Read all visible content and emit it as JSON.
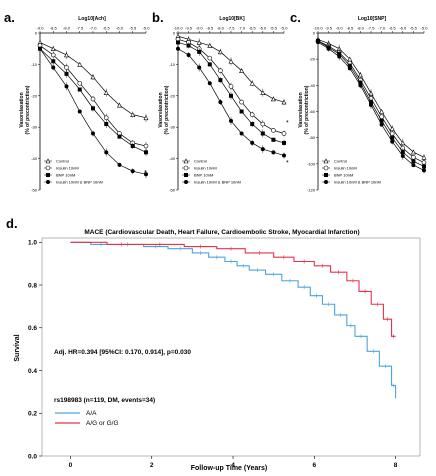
{
  "panels": [
    {
      "letter": "a.",
      "top_axis_label": "Log10[Ach]",
      "top_ticks": [
        "-9.0",
        "-8.5",
        "-8.0",
        "-7.5",
        "-7.0",
        "-6.5",
        "-6.0",
        "-5.5",
        "-5.0"
      ],
      "y_ticks": [
        "0",
        "-10",
        "-20",
        "-30",
        "-40",
        "-50"
      ],
      "ylabel": "Vasorelaxation",
      "ylabel_sub": "(% of precontriction)",
      "legend": [
        "Control",
        "Insulin 10nM",
        "BNP 10nM",
        "Insulin 10nM & BNP 10nM"
      ],
      "star": "*"
    },
    {
      "letter": "b.",
      "top_axis_label": "Log10[BK]",
      "top_ticks": [
        "-10.0",
        "-9.5",
        "-9.0",
        "-8.5",
        "-8.0",
        "-7.5",
        "-7.0",
        "-6.5",
        "-6.0",
        "-5.5",
        "-5.0"
      ],
      "y_ticks": [
        "0",
        "-10",
        "-20",
        "-30",
        "-40",
        "-50"
      ],
      "ylabel": "Vasorelaxation",
      "ylabel_sub": "(% of precontriction)",
      "legend": [
        "Control",
        "Insulin 10nM",
        "BNP 10nM",
        "Insulin 10nM & BNP 10nM"
      ],
      "star": "*"
    },
    {
      "letter": "c.",
      "top_axis_label": "Log10[SNP]",
      "top_ticks": [
        "-10.0",
        "-9.5",
        "-9.0",
        "-8.5",
        "-8.0",
        "-7.5",
        "-7.0",
        "-6.5",
        "-6.0",
        "-5.5",
        "-5.0"
      ],
      "y_ticks": [
        "0",
        "-20",
        "-40",
        "-60",
        "-80",
        "-100",
        "-120"
      ],
      "ylabel": "Vasorelaxation",
      "ylabel_sub": "(% of precontriction)",
      "legend": [
        "Control",
        "Insulin 10nM",
        "BNP 10nM",
        "Insulin 10nM & BNP 10nM"
      ],
      "star": ""
    }
  ],
  "km": {
    "letter": "d.",
    "title": "MACE (Cardiovascular Death, Heart Failure, Cardioembolic Stroke, Myocardial Infarction)",
    "ylabel": "Survival",
    "xlabel": "Follow-up Time (Years)",
    "y_ticks": [
      "0.0",
      "0.2",
      "0.4",
      "0.6",
      "0.8",
      "1.0"
    ],
    "x_ticks": [
      "0",
      "2",
      "4",
      "6",
      "8"
    ],
    "hr_text": "Adj. HR=0.394 [95%CI: 0.170, 0.914], p=0.030",
    "group_text": "rs198983 (n=119, DM, events=34)",
    "legend": [
      "A/A",
      "A/G or G/G"
    ],
    "colors": [
      "#4da3e0",
      "#e8334a"
    ]
  },
  "chart_data": [
    {
      "type": "line",
      "panel": "a",
      "xlabel": "Log10[Ach]",
      "ylabel": "Vasorelaxation (% of precontriction)",
      "xlim": [
        -9.0,
        -5.0
      ],
      "ylim": [
        -50,
        0
      ],
      "x": [
        -9.0,
        -8.5,
        -8.0,
        -7.5,
        -7.0,
        -6.5,
        -6.0,
        -5.5,
        -5.0
      ],
      "series": [
        {
          "name": "Control",
          "marker": "triangle-open",
          "values": [
            -3,
            -5,
            -7,
            -10,
            -14,
            -19,
            -23,
            -26,
            -27
          ]
        },
        {
          "name": "Insulin 10nM",
          "marker": "circle-open",
          "values": [
            -4,
            -7,
            -11,
            -16,
            -21,
            -27,
            -32,
            -35,
            -36
          ]
        },
        {
          "name": "BNP 10nM",
          "marker": "square-filled",
          "values": [
            -5,
            -9,
            -13,
            -18,
            -24,
            -29,
            -33,
            -36,
            -38
          ]
        },
        {
          "name": "Insulin 10nM & BNP 10nM",
          "marker": "circle-filled",
          "values": [
            -5,
            -11,
            -17,
            -25,
            -32,
            -38,
            -42,
            -44,
            -45
          ]
        }
      ]
    },
    {
      "type": "line",
      "panel": "b",
      "xlabel": "Log10[BK]",
      "ylabel": "Vasorelaxation (% of precontriction)",
      "xlim": [
        -10.0,
        -5.0
      ],
      "ylim": [
        -50,
        0
      ],
      "x": [
        -10.0,
        -9.5,
        -9.0,
        -8.5,
        -8.0,
        -7.5,
        -7.0,
        -6.5,
        -6.0,
        -5.5,
        -5.0
      ],
      "series": [
        {
          "name": "Control",
          "marker": "triangle-open",
          "values": [
            -1,
            -2,
            -3,
            -4,
            -6,
            -9,
            -12,
            -16,
            -19,
            -21,
            -22
          ]
        },
        {
          "name": "Insulin 10nM",
          "marker": "circle-open",
          "values": [
            -2,
            -3,
            -5,
            -8,
            -12,
            -17,
            -22,
            -26,
            -29,
            -31,
            -32
          ]
        },
        {
          "name": "BNP 10nM",
          "marker": "square-filled",
          "values": [
            -3,
            -4,
            -6,
            -10,
            -15,
            -20,
            -25,
            -29,
            -32,
            -34,
            -35
          ]
        },
        {
          "name": "Insulin 10nM & BNP 10nM",
          "marker": "circle-filled",
          "values": [
            -5,
            -7,
            -11,
            -16,
            -22,
            -28,
            -32,
            -35,
            -37,
            -38,
            -39
          ]
        }
      ]
    },
    {
      "type": "line",
      "panel": "c",
      "xlabel": "Log10[SNP]",
      "ylabel": "Vasorelaxation (% of precontriction)",
      "xlim": [
        -10.0,
        -5.0
      ],
      "ylim": [
        -120,
        0
      ],
      "x": [
        -10.0,
        -9.5,
        -9.0,
        -8.5,
        -8.0,
        -7.5,
        -7.0,
        -6.5,
        -6.0,
        -5.5,
        -5.0
      ],
      "series": [
        {
          "name": "Control",
          "marker": "triangle-open",
          "values": [
            -5,
            -8,
            -12,
            -20,
            -32,
            -46,
            -60,
            -73,
            -84,
            -91,
            -95
          ]
        },
        {
          "name": "Insulin 10nM",
          "marker": "circle-open",
          "values": [
            -6,
            -10,
            -15,
            -23,
            -36,
            -50,
            -64,
            -77,
            -88,
            -95,
            -99
          ]
        },
        {
          "name": "BNP 10nM",
          "marker": "square-filled",
          "values": [
            -6,
            -11,
            -16,
            -25,
            -38,
            -53,
            -67,
            -80,
            -91,
            -98,
            -102
          ]
        },
        {
          "name": "Insulin 10nM & BNP 10nM",
          "marker": "circle-filled",
          "values": [
            -7,
            -12,
            -18,
            -27,
            -40,
            -55,
            -70,
            -83,
            -94,
            -101,
            -105
          ]
        }
      ]
    },
    {
      "type": "line",
      "panel": "d",
      "title": "MACE (Cardiovascular Death, Heart Failure, Cardioembolic Stroke, Myocardial Infarction)",
      "xlabel": "Follow-up Time (Years)",
      "ylabel": "Survival",
      "xlim": [
        -0.7,
        8.6
      ],
      "ylim": [
        0,
        1.02
      ],
      "series": [
        {
          "name": "A/A",
          "step": true,
          "points": [
            [
              0,
              1.0
            ],
            [
              0.5,
              0.99
            ],
            [
              1.0,
              0.99
            ],
            [
              1.8,
              0.98
            ],
            [
              2.4,
              0.97
            ],
            [
              3.0,
              0.95
            ],
            [
              3.4,
              0.93
            ],
            [
              3.8,
              0.91
            ],
            [
              4.1,
              0.89
            ],
            [
              4.4,
              0.87
            ],
            [
              4.8,
              0.85
            ],
            [
              5.2,
              0.82
            ],
            [
              5.6,
              0.79
            ],
            [
              5.9,
              0.75
            ],
            [
              6.2,
              0.71
            ],
            [
              6.5,
              0.66
            ],
            [
              6.8,
              0.61
            ],
            [
              7.0,
              0.56
            ],
            [
              7.3,
              0.49
            ],
            [
              7.6,
              0.42
            ],
            [
              7.9,
              0.33
            ],
            [
              8.0,
              0.27
            ]
          ]
        },
        {
          "name": "A/G or G/G",
          "step": true,
          "points": [
            [
              0,
              1.0
            ],
            [
              0.9,
              0.99
            ],
            [
              1.6,
              0.99
            ],
            [
              2.8,
              0.98
            ],
            [
              3.6,
              0.97
            ],
            [
              4.3,
              0.95
            ],
            [
              5.0,
              0.93
            ],
            [
              5.5,
              0.91
            ],
            [
              6.0,
              0.89
            ],
            [
              6.4,
              0.86
            ],
            [
              6.8,
              0.82
            ],
            [
              7.1,
              0.77
            ],
            [
              7.4,
              0.71
            ],
            [
              7.7,
              0.64
            ],
            [
              7.9,
              0.56
            ],
            [
              8.0,
              0.56
            ]
          ]
        }
      ]
    }
  ]
}
